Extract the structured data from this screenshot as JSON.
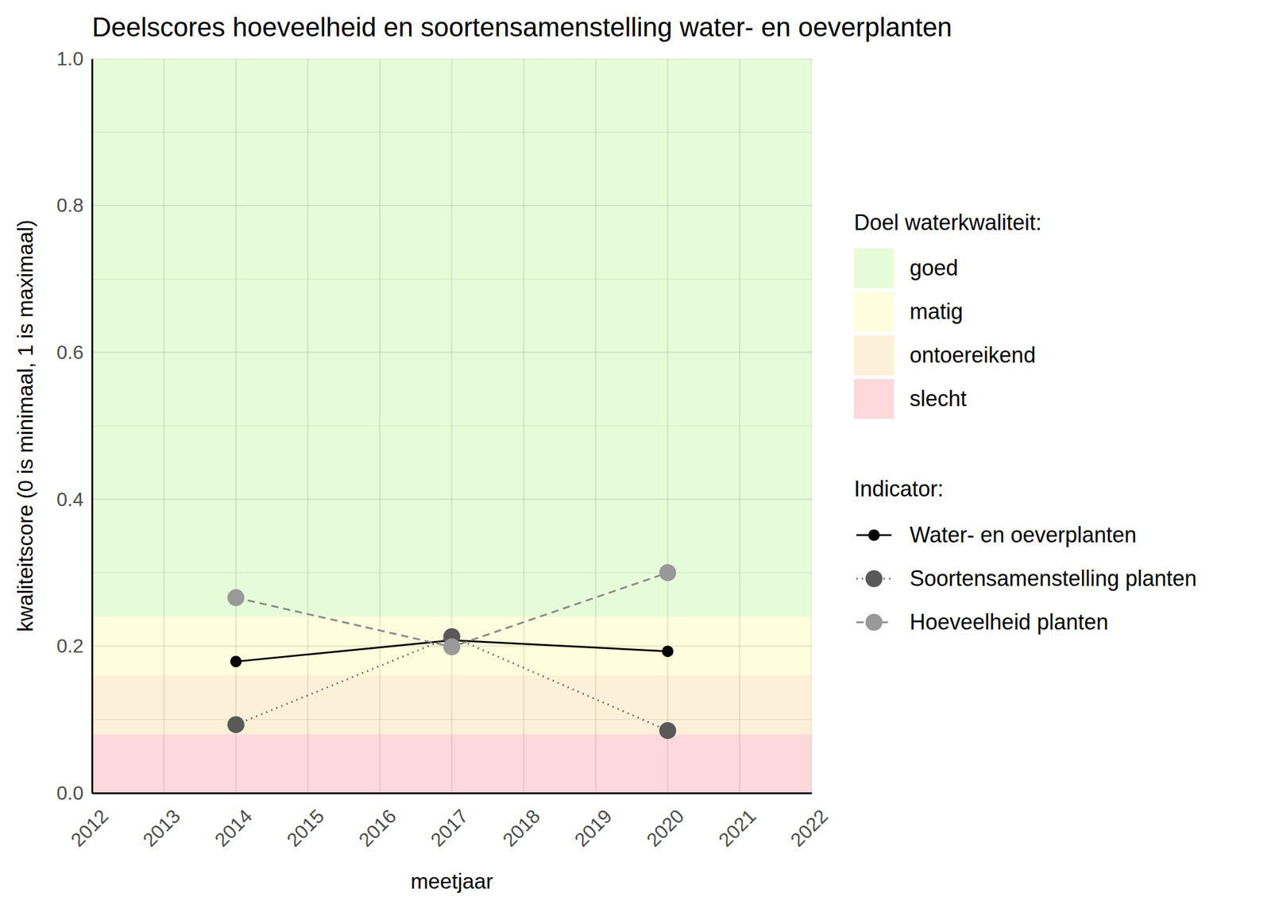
{
  "chart_data": {
    "type": "line",
    "title": "Deelscores hoeveelheid en soortensamenstelling water- en oeverplanten",
    "x_label": "meetjaar",
    "y_label": "kwaliteitscore (0 is minimaal, 1 is maximaal)",
    "x": [
      2014,
      2017,
      2020
    ],
    "xlim": [
      2012,
      2022
    ],
    "xticks": [
      2012,
      2013,
      2014,
      2015,
      2016,
      2017,
      2018,
      2019,
      2020,
      2021,
      2022
    ],
    "ylim": [
      0,
      1
    ],
    "yticks": [
      {
        "value": 0,
        "label": "0.0"
      },
      0.2,
      0.4,
      0.6,
      0.8,
      {
        "value": 1,
        "label": "1.0"
      }
    ],
    "grid": true,
    "legend": "right",
    "bands_title": "Doel waterkwaliteit:",
    "bands": [
      {
        "label": "goed",
        "from": 0.24,
        "to": 1,
        "color": "#e6fcd8"
      },
      {
        "label": "matig",
        "from": 0.16,
        "to": 0.24,
        "color": "#fefddd"
      },
      {
        "label": "ontoereikend",
        "from": 0.08,
        "to": 0.16,
        "color": "#fdf0d8"
      },
      {
        "label": "slecht",
        "from": 0,
        "to": 0.08,
        "color": "#fdd9dc"
      }
    ],
    "series_title": "Indicator:",
    "series": [
      {
        "name": "Water- en oeverplanten",
        "color": "#000000",
        "marker": "circle",
        "line_style": "solid",
        "values": [
          0.179,
          0.208,
          0.193
        ]
      },
      {
        "name": "Soortensamenstelling planten",
        "color": "#595959",
        "marker": "circle",
        "line_style": "dotted",
        "values": [
          0.093,
          0.213,
          0.085
        ]
      },
      {
        "name": "Hoeveelheid planten",
        "color": "#999999",
        "marker": "circle",
        "line_style": "dashed",
        "values": [
          0.266,
          0.199,
          0.3
        ]
      }
    ]
  }
}
